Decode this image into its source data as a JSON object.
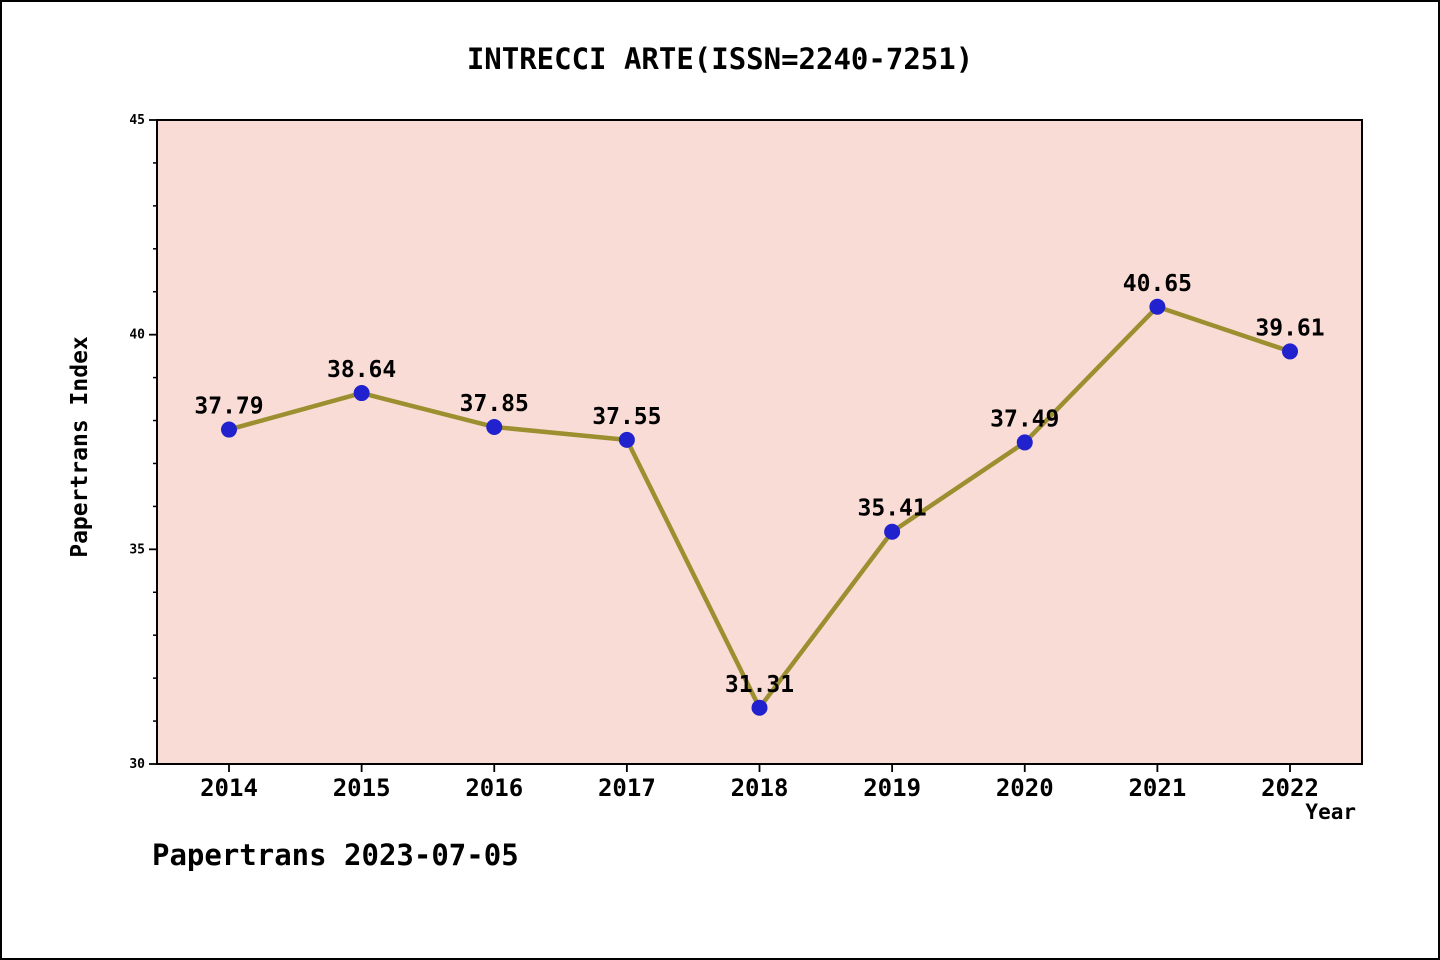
{
  "chart_data": {
    "type": "line",
    "title": "INTRECCI ARTE(ISSN=2240-7251)",
    "xlabel": "Year",
    "ylabel": "Papertrans Index",
    "x": [
      2014,
      2015,
      2016,
      2017,
      2018,
      2019,
      2020,
      2021,
      2022
    ],
    "values": [
      37.79,
      38.64,
      37.85,
      37.55,
      31.31,
      35.41,
      37.49,
      40.65,
      39.61
    ],
    "point_labels": [
      "37.79",
      "38.64",
      "37.85",
      "37.55",
      "31.31",
      "35.41",
      "37.49",
      "40.65",
      "39.61"
    ],
    "ylim": [
      30,
      45
    ],
    "yticks": [
      30,
      35,
      40,
      45
    ],
    "minor_ytick_step": 1,
    "legend_position": "none",
    "grid": false,
    "colors": {
      "line": "#9c8f2f",
      "marker": "#2121cd",
      "plot_background": "#fadcd7",
      "axis": "#000000",
      "text": "#000000"
    }
  },
  "footer": {
    "caption": "Papertrans 2023-07-05"
  }
}
